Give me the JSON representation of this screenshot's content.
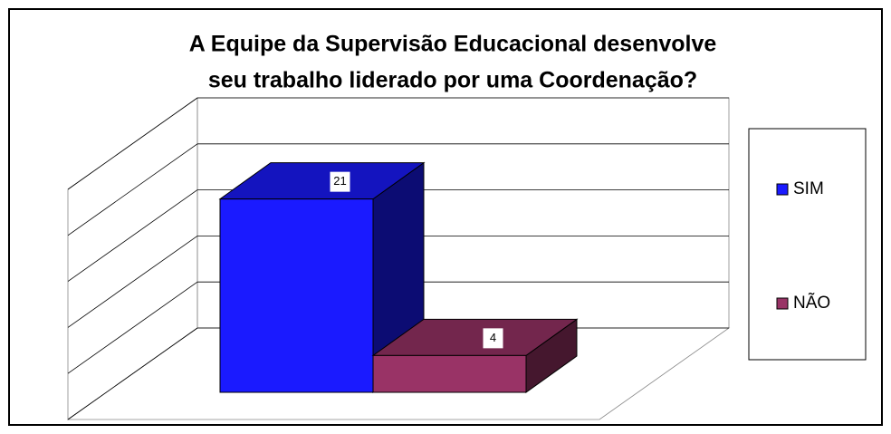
{
  "chart_data": {
    "type": "bar3d",
    "title": [
      "A Equipe da Supervisão Educacional desenvolve",
      "seu trabalho liderado por uma Coordenação?"
    ],
    "categories": [
      "SIM",
      "NÃO"
    ],
    "values": [
      21,
      4
    ],
    "colors": [
      "#1a1aff",
      "#993366"
    ],
    "ylim": [
      0,
      25
    ],
    "yticks": [
      0,
      5,
      10,
      15,
      20,
      25
    ],
    "grid": true,
    "legend": "right"
  }
}
